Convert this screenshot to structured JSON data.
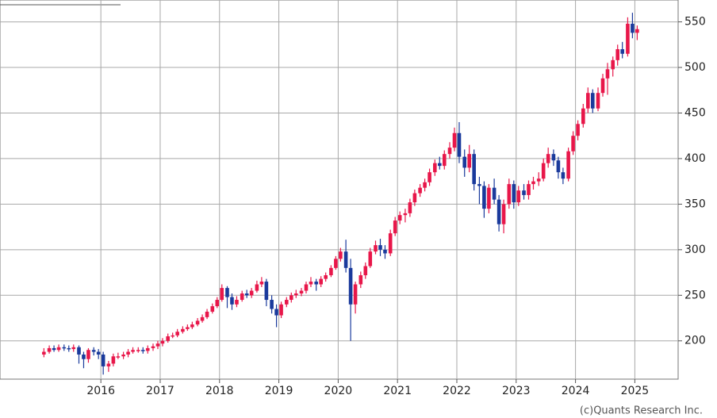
{
  "chart_data": {
    "type": "candlestick",
    "credit": "(c)Quants Research Inc.",
    "x": [
      2015.04,
      2015.13,
      2015.21,
      2015.29,
      2015.38,
      2015.46,
      2015.54,
      2015.63,
      2015.71,
      2015.79,
      2015.88,
      2015.96,
      2016.04,
      2016.13,
      2016.21,
      2016.29,
      2016.38,
      2016.46,
      2016.54,
      2016.63,
      2016.71,
      2016.79,
      2016.88,
      2016.96,
      2017.04,
      2017.13,
      2017.21,
      2017.29,
      2017.38,
      2017.46,
      2017.54,
      2017.63,
      2017.71,
      2017.79,
      2017.88,
      2017.96,
      2018.04,
      2018.13,
      2018.21,
      2018.29,
      2018.38,
      2018.46,
      2018.54,
      2018.63,
      2018.71,
      2018.79,
      2018.88,
      2018.96,
      2019.04,
      2019.13,
      2019.21,
      2019.29,
      2019.38,
      2019.46,
      2019.54,
      2019.63,
      2019.71,
      2019.79,
      2019.88,
      2019.96,
      2020.04,
      2020.13,
      2020.21,
      2020.29,
      2020.38,
      2020.46,
      2020.54,
      2020.63,
      2020.71,
      2020.79,
      2020.88,
      2020.96,
      2021.04,
      2021.13,
      2021.21,
      2021.29,
      2021.38,
      2021.46,
      2021.54,
      2021.63,
      2021.71,
      2021.79,
      2021.88,
      2021.96,
      2022.04,
      2022.13,
      2022.21,
      2022.29,
      2022.38,
      2022.46,
      2022.54,
      2022.63,
      2022.71,
      2022.79,
      2022.88,
      2022.96,
      2023.04,
      2023.13,
      2023.21,
      2023.29,
      2023.38,
      2023.46,
      2023.54,
      2023.63,
      2023.71,
      2023.79,
      2023.88,
      2023.96,
      2024.04,
      2024.13,
      2024.21,
      2024.29,
      2024.38,
      2024.46,
      2024.54,
      2024.63,
      2024.71,
      2024.79,
      2024.88,
      2024.96,
      2025.04
    ],
    "open": [
      185,
      188,
      192,
      190,
      193,
      192,
      191,
      193,
      185,
      180,
      190,
      188,
      185,
      172,
      175,
      183,
      183,
      185,
      188,
      190,
      190,
      189,
      192,
      194,
      197,
      200,
      205,
      206,
      210,
      213,
      215,
      218,
      222,
      226,
      232,
      238,
      245,
      258,
      248,
      240,
      245,
      252,
      250,
      255,
      262,
      265,
      245,
      235,
      228,
      240,
      245,
      250,
      252,
      255,
      262,
      265,
      262,
      268,
      272,
      280,
      290,
      298,
      280,
      240,
      262,
      272,
      282,
      298,
      305,
      300,
      296,
      318,
      332,
      338,
      340,
      352,
      362,
      368,
      374,
      385,
      395,
      392,
      405,
      412,
      428,
      402,
      390,
      405,
      372,
      370,
      345,
      368,
      355,
      328,
      350,
      372,
      352,
      365,
      360,
      372,
      375,
      378,
      395,
      405,
      398,
      385,
      378,
      408,
      425,
      438,
      455,
      472,
      455,
      472,
      488,
      498,
      508,
      520,
      515,
      548,
      538
    ],
    "high": [
      192,
      195,
      195,
      196,
      196,
      195,
      196,
      195,
      188,
      192,
      193,
      191,
      188,
      178,
      186,
      187,
      188,
      191,
      193,
      193,
      193,
      195,
      197,
      200,
      203,
      208,
      209,
      213,
      216,
      218,
      221,
      225,
      229,
      235,
      241,
      248,
      262,
      260,
      252,
      249,
      255,
      256,
      258,
      266,
      270,
      268,
      250,
      240,
      243,
      248,
      253,
      256,
      258,
      265,
      270,
      268,
      271,
      275,
      283,
      293,
      302,
      311,
      290,
      265,
      276,
      286,
      302,
      310,
      312,
      305,
      322,
      336,
      342,
      345,
      356,
      366,
      372,
      378,
      389,
      399,
      402,
      409,
      418,
      434,
      440,
      410,
      415,
      410,
      380,
      375,
      372,
      378,
      360,
      355,
      378,
      376,
      370,
      372,
      376,
      380,
      385,
      400,
      412,
      410,
      402,
      390,
      412,
      430,
      442,
      460,
      478,
      476,
      478,
      493,
      505,
      512,
      525,
      528,
      555,
      560,
      546
    ],
    "low": [
      182,
      186,
      188,
      188,
      189,
      188,
      188,
      175,
      170,
      176,
      184,
      180,
      163,
      166,
      172,
      180,
      180,
      182,
      186,
      187,
      186,
      186,
      189,
      191,
      194,
      198,
      203,
      204,
      208,
      211,
      213,
      216,
      220,
      224,
      230,
      236,
      243,
      236,
      234,
      237,
      243,
      247,
      247,
      253,
      259,
      238,
      230,
      215,
      225,
      237,
      242,
      247,
      249,
      252,
      259,
      255,
      259,
      265,
      270,
      278,
      287,
      275,
      200,
      230,
      258,
      268,
      280,
      295,
      293,
      290,
      293,
      315,
      328,
      330,
      336,
      348,
      358,
      364,
      370,
      381,
      388,
      388,
      400,
      408,
      395,
      380,
      385,
      365,
      350,
      335,
      340,
      350,
      320,
      318,
      345,
      345,
      348,
      355,
      355,
      366,
      370,
      375,
      390,
      392,
      378,
      372,
      375,
      404,
      420,
      434,
      450,
      450,
      452,
      468,
      470,
      490,
      502,
      510,
      512,
      532,
      530
    ],
    "close": [
      188,
      192,
      190,
      193,
      192,
      191,
      193,
      185,
      180,
      190,
      188,
      185,
      172,
      175,
      183,
      183,
      185,
      188,
      190,
      190,
      189,
      192,
      194,
      197,
      200,
      205,
      206,
      210,
      213,
      215,
      218,
      222,
      226,
      232,
      238,
      245,
      258,
      248,
      240,
      245,
      252,
      250,
      255,
      262,
      265,
      245,
      235,
      228,
      240,
      245,
      250,
      252,
      255,
      262,
      265,
      262,
      268,
      272,
      280,
      290,
      298,
      280,
      240,
      262,
      272,
      282,
      298,
      305,
      300,
      296,
      318,
      332,
      338,
      340,
      352,
      362,
      368,
      374,
      385,
      395,
      392,
      405,
      412,
      428,
      402,
      390,
      405,
      372,
      370,
      345,
      368,
      355,
      328,
      350,
      372,
      352,
      365,
      360,
      372,
      375,
      378,
      395,
      405,
      398,
      385,
      378,
      408,
      425,
      438,
      455,
      472,
      455,
      472,
      488,
      498,
      508,
      520,
      515,
      548,
      538,
      542
    ],
    "up_color": "#e8174a",
    "down_color": "#1a3a9c",
    "xlim": [
      2014.3,
      2025.73
    ],
    "xticks": [
      2016,
      2017,
      2018,
      2019,
      2020,
      2021,
      2022,
      2023,
      2024,
      2025
    ],
    "ylim": [
      158,
      574
    ],
    "yticks": [
      200,
      250,
      300,
      350,
      400,
      450,
      500,
      550
    ],
    "grid": true
  }
}
